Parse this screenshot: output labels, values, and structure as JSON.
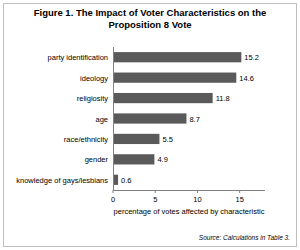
{
  "chart_data": {
    "type": "bar",
    "orientation": "horizontal",
    "title": "Figure 1.  The Impact of Voter Characteristics on the Proposition 8 Vote",
    "categories": [
      "party identification",
      "ideology",
      "religiosity",
      "age",
      "race/ethnicity",
      "gender",
      "knowledge of gays/lesbians"
    ],
    "values": [
      15.2,
      14.6,
      11.8,
      8.7,
      5.5,
      4.9,
      0.6
    ],
    "color": "#5a5a5a",
    "xlim": [
      0,
      18
    ],
    "xticks": [
      0,
      5,
      10,
      15
    ],
    "xlabel": "percentage of votes affected by characteristic",
    "annotations": [
      "Source: Calculations in Table 3."
    ],
    "data_labels": true,
    "grid": false
  }
}
